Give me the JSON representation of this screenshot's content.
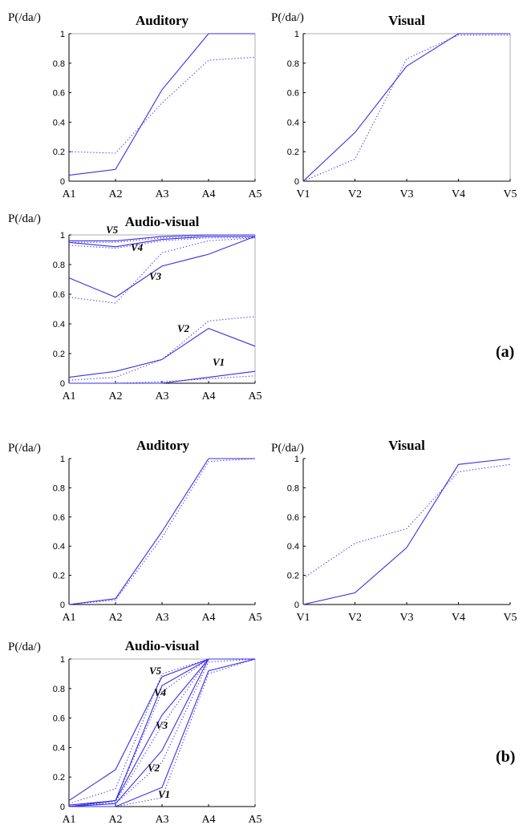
{
  "y_axis_label": "P(/da/)",
  "panel_labels": [
    "(a)",
    "(b)"
  ],
  "chart_data": [
    {
      "type": "line",
      "panel": "(a)",
      "title": "Auditory",
      "ylabel": "P(/da/)",
      "categories": [
        "A1",
        "A2",
        "A3",
        "A4",
        "A5"
      ],
      "ylim": [
        0,
        1
      ],
      "yticks": [
        "0",
        "0.2",
        "0.4",
        "0.6",
        "0.8",
        "1"
      ],
      "series": [
        {
          "style": "solid",
          "values": [
            0.04,
            0.08,
            0.62,
            1.0,
            1.0
          ]
        },
        {
          "style": "dotted",
          "values": [
            0.2,
            0.19,
            0.53,
            0.82,
            0.84
          ]
        }
      ]
    },
    {
      "type": "line",
      "panel": "(a)",
      "title": "Visual",
      "ylabel": "P(/da/)",
      "categories": [
        "V1",
        "V2",
        "V3",
        "V4",
        "V5"
      ],
      "ylim": [
        0,
        1
      ],
      "yticks": [
        "0",
        "0.2",
        "0.4",
        "0.6",
        "0.8",
        "1"
      ],
      "series": [
        {
          "style": "solid",
          "values": [
            0.0,
            0.33,
            0.78,
            1.0,
            1.0
          ]
        },
        {
          "style": "dotted",
          "values": [
            0.0,
            0.15,
            0.83,
            0.99,
            0.99
          ]
        }
      ]
    },
    {
      "type": "line",
      "panel": "(a)",
      "title": "Audio-visual",
      "ylabel": "P(/da/)",
      "categories": [
        "A1",
        "A2",
        "A3",
        "A4",
        "A5"
      ],
      "ylim": [
        0,
        1
      ],
      "yticks": [
        "0",
        "0.2",
        "0.4",
        "0.6",
        "0.8",
        "1"
      ],
      "series": [
        {
          "name": "V1",
          "style": "solid",
          "values": [
            0.0,
            0.0,
            0.0,
            0.04,
            0.08
          ]
        },
        {
          "name": "V1",
          "style": "dotted",
          "values": [
            0.0,
            0.0,
            0.01,
            0.03,
            0.05
          ]
        },
        {
          "name": "V2",
          "style": "solid",
          "values": [
            0.04,
            0.08,
            0.16,
            0.37,
            0.25
          ]
        },
        {
          "name": "V2",
          "style": "dotted",
          "values": [
            0.02,
            0.04,
            0.16,
            0.42,
            0.45
          ]
        },
        {
          "name": "V3",
          "style": "solid",
          "values": [
            0.71,
            0.58,
            0.79,
            0.87,
            0.99
          ]
        },
        {
          "name": "V3",
          "style": "dotted",
          "values": [
            0.58,
            0.54,
            0.88,
            0.96,
            0.98
          ]
        },
        {
          "name": "V4",
          "style": "solid",
          "values": [
            0.95,
            0.92,
            0.97,
            0.99,
            0.99
          ]
        },
        {
          "name": "V4",
          "style": "dotted",
          "values": [
            0.93,
            0.91,
            0.96,
            0.98,
            0.98
          ]
        },
        {
          "name": "V5",
          "style": "solid",
          "values": [
            0.96,
            0.96,
            0.99,
            1.0,
            1.0
          ]
        },
        {
          "name": "V5",
          "style": "dotted",
          "values": [
            0.95,
            0.95,
            0.98,
            0.99,
            0.99
          ]
        }
      ],
      "annotations": [
        "V5",
        "V4",
        "V3",
        "V2",
        "V1"
      ]
    },
    {
      "type": "line",
      "panel": "(b)",
      "title": "Auditory",
      "ylabel": "P(/da/)",
      "categories": [
        "A1",
        "A2",
        "A3",
        "A4",
        "A5"
      ],
      "ylim": [
        0,
        1
      ],
      "yticks": [
        "0",
        "0.2",
        "0.4",
        "0.6",
        "0.8",
        "1"
      ],
      "series": [
        {
          "style": "solid",
          "values": [
            0.0,
            0.04,
            0.5,
            1.0,
            1.0
          ]
        },
        {
          "style": "dotted",
          "values": [
            0.0,
            0.03,
            0.46,
            0.98,
            1.0
          ]
        }
      ]
    },
    {
      "type": "line",
      "panel": "(b)",
      "title": "Visual",
      "ylabel": "P(/da/)",
      "categories": [
        "V1",
        "V2",
        "V3",
        "V4",
        "V5"
      ],
      "ylim": [
        0,
        1
      ],
      "yticks": [
        "0",
        "0.2",
        "0.4",
        "0.6",
        "0.8",
        "1"
      ],
      "series": [
        {
          "style": "solid",
          "values": [
            0.0,
            0.08,
            0.39,
            0.96,
            1.0
          ]
        },
        {
          "style": "dotted",
          "values": [
            0.18,
            0.42,
            0.52,
            0.91,
            0.96
          ]
        }
      ]
    },
    {
      "type": "line",
      "panel": "(b)",
      "title": "Audio-visual",
      "ylabel": "P(/da/)",
      "categories": [
        "A1",
        "A2",
        "A3",
        "A4",
        "A5"
      ],
      "ylim": [
        0,
        1
      ],
      "yticks": [
        "0",
        "0.2",
        "0.4",
        "0.6",
        "0.8",
        "1"
      ],
      "series": [
        {
          "name": "V1",
          "style": "solid",
          "values": [
            0.0,
            0.0,
            0.13,
            0.92,
            1.0
          ]
        },
        {
          "name": "V1",
          "style": "dotted",
          "values": [
            0.0,
            0.0,
            0.06,
            0.9,
            1.0
          ]
        },
        {
          "name": "V2",
          "style": "solid",
          "values": [
            0.0,
            0.02,
            0.38,
            1.0,
            1.0
          ]
        },
        {
          "name": "V2",
          "style": "dotted",
          "values": [
            0.0,
            0.02,
            0.3,
            0.98,
            1.0
          ]
        },
        {
          "name": "V3",
          "style": "solid",
          "values": [
            0.0,
            0.04,
            0.62,
            1.0,
            1.0
          ]
        },
        {
          "name": "V3",
          "style": "dotted",
          "values": [
            0.0,
            0.03,
            0.55,
            1.0,
            1.0
          ]
        },
        {
          "name": "V4",
          "style": "solid",
          "values": [
            0.01,
            0.04,
            0.82,
            1.0,
            1.0
          ]
        },
        {
          "name": "V4",
          "style": "dotted",
          "values": [
            0.0,
            0.04,
            0.78,
            1.0,
            1.0
          ]
        },
        {
          "name": "V5",
          "style": "solid",
          "values": [
            0.04,
            0.25,
            0.88,
            1.0,
            1.0
          ]
        },
        {
          "name": "V5",
          "style": "dotted",
          "values": [
            0.02,
            0.12,
            0.9,
            1.0,
            1.0
          ]
        }
      ],
      "annotations": [
        "V5",
        "V4",
        "V3",
        "V2",
        "V1"
      ]
    }
  ]
}
